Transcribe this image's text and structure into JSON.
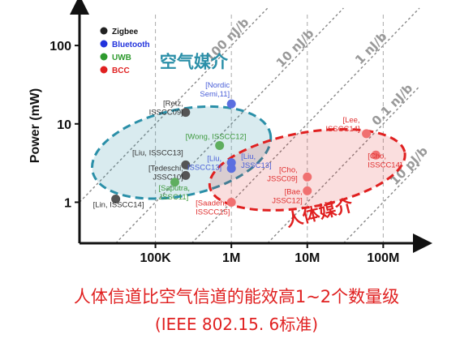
{
  "chart_data": {
    "type": "scatter",
    "ylabel": "Power (mW)",
    "xscale": "log",
    "yscale": "log",
    "xlim": [
      10000,
      300000000
    ],
    "ylim": [
      0.3,
      300
    ],
    "x_ticks": [
      {
        "value": 100000,
        "label": "100K"
      },
      {
        "value": 1000000,
        "label": "1M"
      },
      {
        "value": 10000000,
        "label": "10M"
      },
      {
        "value": 100000000,
        "label": "100M"
      }
    ],
    "y_ticks": [
      {
        "value": 1,
        "label": "1"
      },
      {
        "value": 10,
        "label": "10"
      },
      {
        "value": 100,
        "label": "100"
      }
    ],
    "legend": {
      "placement": "top-left",
      "entries": [
        {
          "name": "Zigbee",
          "color": "#222222"
        },
        {
          "name": "Bluetooth",
          "color": "#2233dd"
        },
        {
          "name": "UWB",
          "color": "#2e9a2e"
        },
        {
          "name": "BCC",
          "color": "#e02020"
        }
      ]
    },
    "energy_lines": [
      {
        "label": "100 nJ/b",
        "nj_per_bit": 100
      },
      {
        "label": "10 nJ/b",
        "nj_per_bit": 10
      },
      {
        "label": "1 nJ/b",
        "nj_per_bit": 1
      },
      {
        "label": "0.1 nJ/b",
        "nj_per_bit": 0.1
      },
      {
        "label": "10 pJ/b",
        "nj_per_bit": 0.01
      }
    ],
    "regions": [
      {
        "name": "air-medium",
        "label": "空气媒介",
        "color": "#2a8fa8"
      },
      {
        "name": "body-medium",
        "label": "人体媒介",
        "color": "#e02020"
      }
    ],
    "series": [
      {
        "name": "Zigbee",
        "color": "#555555",
        "points": [
          {
            "x": 30000,
            "y": 1.1,
            "label": "[Lin, ISSCC14]"
          },
          {
            "x": 250000,
            "y": 14,
            "label": "[Retz, ISSCC09]"
          },
          {
            "x": 250000,
            "y": 3.0,
            "label": "[Liu, ISSCC13]"
          },
          {
            "x": 250000,
            "y": 2.2,
            "label": "[Tedeschi, JSSC10]"
          }
        ]
      },
      {
        "name": "Bluetooth",
        "color": "#5b6fe0",
        "points": [
          {
            "x": 1000000,
            "y": 18,
            "label": "[Nordic Semi,11]"
          },
          {
            "x": 1000000,
            "y": 3.2,
            "label": "[Liu, ISSCC13]"
          },
          {
            "x": 1000000,
            "y": 2.7,
            "label": "[Liu, JSSC13]"
          }
        ]
      },
      {
        "name": "UWB",
        "color": "#5fae5f",
        "points": [
          {
            "x": 700000,
            "y": 5.3,
            "label": "[Wong, ISSCC12]"
          },
          {
            "x": 180000,
            "y": 1.8,
            "label": "[Saputra, JSSC11]"
          }
        ]
      },
      {
        "name": "BCC",
        "color": "#f07070",
        "points": [
          {
            "x": 1000000,
            "y": 1.0,
            "label": "[Saadeh, ISSCC15]"
          },
          {
            "x": 10000000,
            "y": 2.1,
            "label": "[Cho, JSSC09]"
          },
          {
            "x": 10000000,
            "y": 1.4,
            "label": "[Bae, JSSC12]"
          },
          {
            "x": 60000000,
            "y": 7.5,
            "label": "[Lee, ISSCC14]"
          },
          {
            "x": 80000000,
            "y": 4.0,
            "label": "[Cho, ISSCC14]"
          }
        ]
      }
    ]
  },
  "caption": {
    "line1": "人体信道比空气信道的能效高1~2个数量级",
    "line2": "(IEEE 802.15. 6标准)"
  }
}
